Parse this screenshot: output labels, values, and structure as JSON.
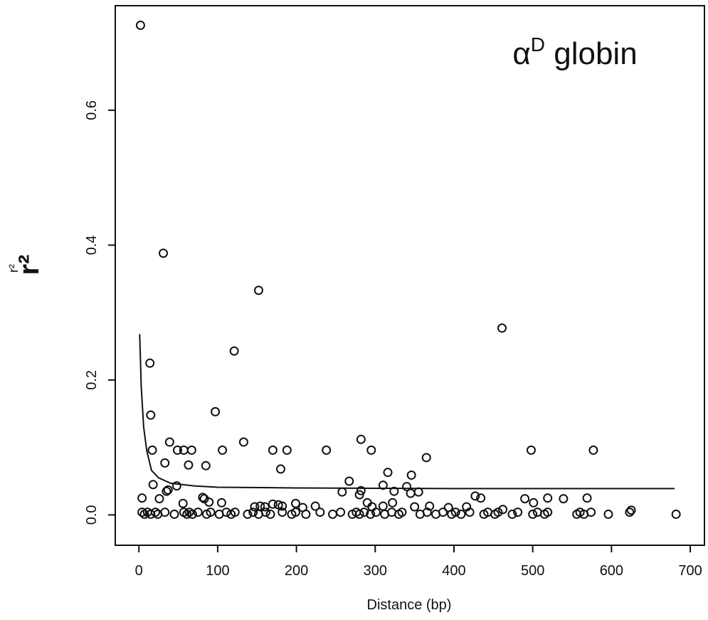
{
  "chart_data": {
    "type": "scatter",
    "title": {
      "base": "α",
      "superscript": "D",
      "rest": " globin"
    },
    "xlabel": "Distance (bp)",
    "ylabel": "r²",
    "xlim": [
      -30,
      718
    ],
    "ylim": [
      -0.045,
      0.755
    ],
    "xticks": [
      0,
      100,
      200,
      300,
      400,
      500,
      600,
      700
    ],
    "yticks": [
      {
        "value": 0,
        "label": "0.0"
      },
      0.2,
      0.4,
      0.6
    ],
    "color": "#111111",
    "points": {
      "x": [
        2,
        31,
        152,
        461,
        121,
        14,
        15,
        97,
        282,
        133,
        39,
        17,
        49,
        57,
        67,
        106,
        170,
        188,
        238,
        295,
        498,
        577,
        365,
        33,
        63,
        85,
        180,
        316,
        346,
        267,
        18,
        48,
        310,
        340,
        37,
        35,
        258,
        282,
        324,
        355,
        345,
        280,
        427,
        434,
        4,
        26,
        81,
        83,
        490,
        519,
        539,
        569,
        89,
        105,
        56,
        199,
        290,
        322,
        501,
        170,
        177,
        182,
        147,
        154,
        160,
        224,
        208,
        310,
        296,
        369,
        350,
        416,
        393,
        462,
        625,
        4,
        7,
        11,
        15,
        21,
        24,
        33,
        45,
        57,
        61,
        64,
        68,
        75,
        86,
        91,
        102,
        111,
        117,
        122,
        138,
        145,
        152,
        161,
        167,
        182,
        194,
        199,
        212,
        230,
        246,
        256,
        271,
        276,
        280,
        286,
        294,
        301,
        312,
        321,
        330,
        334,
        357,
        366,
        377,
        386,
        397,
        402,
        409,
        420,
        438,
        443,
        452,
        456,
        474,
        481,
        500,
        506,
        515,
        519,
        556,
        560,
        565,
        574,
        596,
        623,
        682
      ],
      "values": [
        0.726,
        0.388,
        0.333,
        0.277,
        0.243,
        0.225,
        0.148,
        0.153,
        0.112,
        0.108,
        0.108,
        0.096,
        0.096,
        0.096,
        0.096,
        0.096,
        0.096,
        0.096,
        0.096,
        0.096,
        0.096,
        0.096,
        0.085,
        0.077,
        0.074,
        0.073,
        0.068,
        0.063,
        0.059,
        0.05,
        0.045,
        0.043,
        0.044,
        0.042,
        0.037,
        0.035,
        0.034,
        0.036,
        0.035,
        0.034,
        0.032,
        0.03,
        0.028,
        0.025,
        0.025,
        0.024,
        0.026,
        0.024,
        0.024,
        0.025,
        0.024,
        0.025,
        0.019,
        0.018,
        0.017,
        0.017,
        0.018,
        0.018,
        0.018,
        0.016,
        0.015,
        0.013,
        0.012,
        0.013,
        0.012,
        0.013,
        0.011,
        0.013,
        0.012,
        0.013,
        0.012,
        0.012,
        0.011,
        0.008,
        0.007,
        0.004,
        0.001,
        0.004,
        0.001,
        0.004,
        0.001,
        0.004,
        0.001,
        0.004,
        0.001,
        0.004,
        0.001,
        0.004,
        0.001,
        0.004,
        0.001,
        0.004,
        0.001,
        0.004,
        0.001,
        0.004,
        0.001,
        0.004,
        0.001,
        0.004,
        0.001,
        0.004,
        0.001,
        0.004,
        0.001,
        0.004,
        0.001,
        0.004,
        0.001,
        0.004,
        0.001,
        0.004,
        0.001,
        0.004,
        0.001,
        0.004,
        0.001,
        0.004,
        0.001,
        0.004,
        0.001,
        0.004,
        0.001,
        0.004,
        0.001,
        0.004,
        0.001,
        0.004,
        0.001,
        0.004,
        0.001,
        0.004,
        0.001,
        0.004,
        0.001,
        0.004,
        0.001,
        0.004,
        0.001,
        0.004,
        0.001
      ]
    },
    "curve": {
      "x": [
        1,
        3,
        6,
        10,
        16,
        25,
        40,
        70,
        100,
        200,
        400,
        680
      ],
      "values": [
        0.268,
        0.19,
        0.13,
        0.095,
        0.066,
        0.055,
        0.047,
        0.043,
        0.041,
        0.04,
        0.039,
        0.039
      ]
    }
  }
}
